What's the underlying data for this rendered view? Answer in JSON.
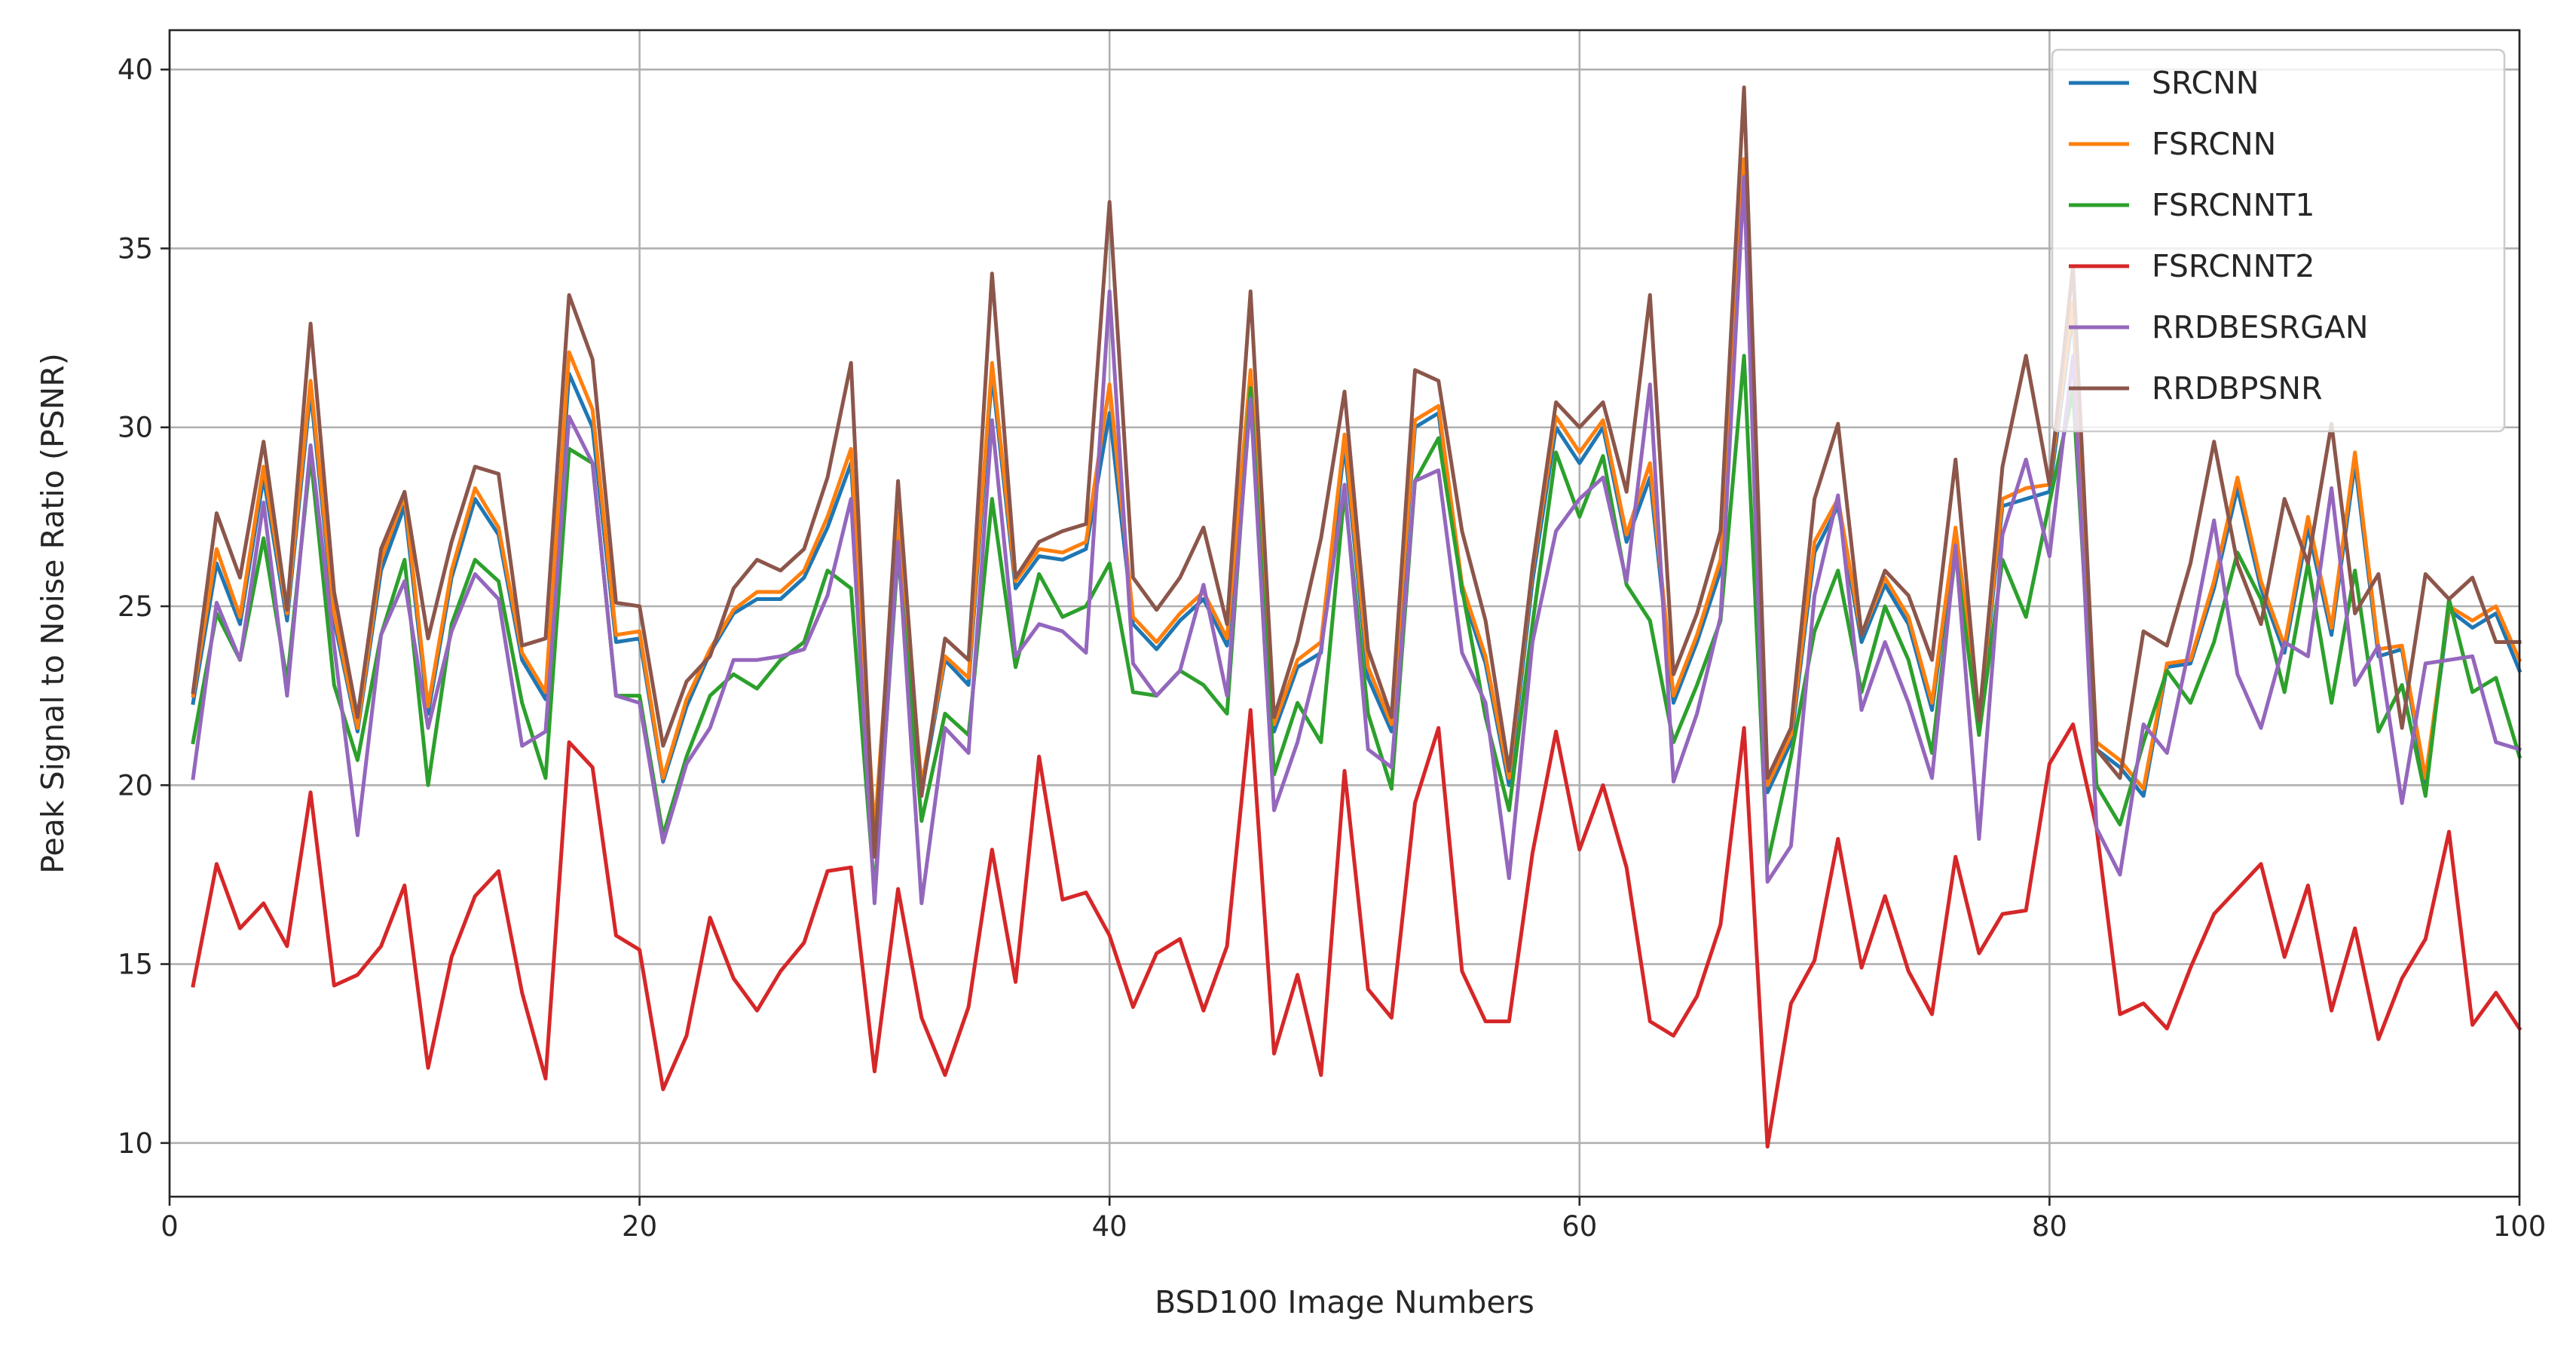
{
  "chart_data": {
    "type": "line",
    "title": "",
    "xlabel": "BSD100 Image Numbers",
    "ylabel": "Peak Signal to Noise Ratio (PSNR)",
    "xlim": [
      0,
      100
    ],
    "ylim": [
      8.5,
      41.1
    ],
    "xticks": [
      0,
      20,
      40,
      60,
      80,
      100
    ],
    "yticks": [
      10,
      15,
      20,
      25,
      30,
      35,
      40
    ],
    "grid": true,
    "legend_position": "top-right",
    "x": [
      1,
      2,
      3,
      4,
      5,
      6,
      7,
      8,
      9,
      10,
      11,
      12,
      13,
      14,
      15,
      16,
      17,
      18,
      19,
      20,
      21,
      22,
      23,
      24,
      25,
      26,
      27,
      28,
      29,
      30,
      31,
      32,
      33,
      34,
      35,
      36,
      37,
      38,
      39,
      40,
      41,
      42,
      43,
      44,
      45,
      46,
      47,
      48,
      49,
      50,
      51,
      52,
      53,
      54,
      55,
      56,
      57,
      58,
      59,
      60,
      61,
      62,
      63,
      64,
      65,
      66,
      67,
      68,
      69,
      70,
      71,
      72,
      73,
      74,
      75,
      76,
      77,
      78,
      79,
      80,
      81,
      82,
      83,
      84,
      85,
      86,
      87,
      88,
      89,
      90,
      91,
      92,
      93,
      94,
      95,
      96,
      97,
      98,
      99,
      100
    ],
    "series": [
      {
        "name": "SRCNN",
        "color": "#1f77b4",
        "values": [
          22.3,
          26.2,
          24.5,
          28.6,
          24.6,
          31.0,
          24.6,
          21.5,
          26.0,
          27.8,
          22.0,
          25.8,
          28.0,
          27.0,
          23.5,
          22.4,
          31.5,
          30.0,
          24.0,
          24.1,
          20.1,
          22.2,
          23.7,
          24.8,
          25.2,
          25.2,
          25.8,
          27.2,
          29.0,
          18.5,
          27.3,
          19.8,
          23.5,
          22.8,
          31.5,
          25.5,
          26.4,
          26.3,
          26.6,
          30.4,
          24.5,
          23.8,
          24.6,
          25.2,
          23.9,
          31.3,
          21.5,
          23.3,
          23.7,
          29.5,
          23.0,
          21.5,
          30.0,
          30.4,
          25.4,
          23.4,
          20.0,
          25.7,
          30.0,
          29.0,
          30.0,
          26.8,
          28.6,
          22.3,
          24.0,
          26.0,
          37.0,
          19.8,
          21.2,
          26.5,
          27.8,
          24.0,
          25.6,
          24.5,
          22.1,
          27.0,
          21.7,
          27.8,
          28.0,
          28.2,
          33.2,
          21.0,
          20.5,
          19.7,
          23.3,
          23.4,
          25.5,
          28.3,
          25.5,
          23.7,
          27.2,
          24.2,
          29.0,
          23.6,
          23.8,
          20.0,
          24.9,
          24.4,
          24.8,
          23.2
        ]
      },
      {
        "name": "FSRCNN",
        "color": "#ff7f0e",
        "values": [
          22.5,
          26.6,
          24.7,
          28.9,
          24.8,
          31.3,
          24.8,
          21.6,
          26.3,
          28.1,
          22.2,
          26.0,
          28.3,
          27.2,
          23.7,
          22.6,
          32.1,
          30.5,
          24.2,
          24.3,
          20.2,
          22.4,
          23.8,
          24.9,
          25.4,
          25.4,
          26.0,
          27.5,
          29.4,
          18.7,
          27.6,
          20.0,
          23.6,
          23.0,
          31.8,
          25.7,
          26.6,
          26.5,
          26.8,
          31.2,
          24.7,
          24.0,
          24.8,
          25.4,
          24.1,
          31.6,
          21.7,
          23.5,
          24.0,
          29.8,
          23.3,
          21.7,
          30.2,
          30.6,
          25.6,
          23.6,
          20.2,
          26.0,
          30.3,
          29.3,
          30.2,
          27.0,
          29.0,
          22.5,
          24.2,
          26.3,
          37.5,
          20.0,
          21.4,
          26.8,
          28.0,
          24.2,
          25.8,
          24.7,
          22.3,
          27.2,
          21.9,
          28.0,
          28.3,
          28.4,
          33.5,
          21.2,
          20.7,
          19.9,
          23.4,
          23.5,
          25.7,
          28.6,
          25.7,
          23.9,
          27.5,
          24.4,
          29.3,
          23.8,
          23.9,
          20.2,
          25.0,
          24.6,
          25.0,
          23.5
        ]
      },
      {
        "name": "FSRCNNT1",
        "color": "#2ca02c",
        "values": [
          21.2,
          24.8,
          23.5,
          26.9,
          22.9,
          29.2,
          22.8,
          20.7,
          24.2,
          26.3,
          20.0,
          24.5,
          26.3,
          25.7,
          22.3,
          20.2,
          29.4,
          29.0,
          22.5,
          22.5,
          18.6,
          20.8,
          22.5,
          23.1,
          22.7,
          23.5,
          24.0,
          26.0,
          25.5,
          17.0,
          26.5,
          19.0,
          22.0,
          21.4,
          28.0,
          23.3,
          25.9,
          24.7,
          25.0,
          26.2,
          22.6,
          22.5,
          23.2,
          22.8,
          22.0,
          31.1,
          20.3,
          22.3,
          21.2,
          28.2,
          22.0,
          19.9,
          28.5,
          29.7,
          25.5,
          21.9,
          19.3,
          24.5,
          29.3,
          27.5,
          29.2,
          25.6,
          24.6,
          21.2,
          22.8,
          24.6,
          32.0,
          17.8,
          20.8,
          24.3,
          26.0,
          22.6,
          25.0,
          23.5,
          20.9,
          26.5,
          21.4,
          26.3,
          24.7,
          27.9,
          31.0,
          20.0,
          18.9,
          21.2,
          23.2,
          22.3,
          24.0,
          26.5,
          25.2,
          22.6,
          26.2,
          22.3,
          26.0,
          21.5,
          22.8,
          19.7,
          25.2,
          22.6,
          23.0,
          20.8
        ]
      },
      {
        "name": "FSRCNNT2",
        "color": "#d62728",
        "values": [
          14.4,
          17.8,
          16.0,
          16.7,
          15.5,
          19.8,
          14.4,
          14.7,
          15.5,
          17.2,
          12.1,
          15.2,
          16.9,
          17.6,
          14.2,
          11.8,
          21.2,
          20.5,
          15.8,
          15.4,
          11.5,
          13.0,
          16.3,
          14.6,
          13.7,
          14.8,
          15.6,
          17.6,
          17.7,
          12.0,
          17.1,
          13.5,
          11.9,
          13.8,
          18.2,
          14.5,
          20.8,
          16.8,
          17.0,
          15.8,
          13.8,
          15.3,
          15.7,
          13.7,
          15.5,
          22.1,
          12.5,
          14.7,
          11.9,
          20.4,
          14.3,
          13.5,
          19.5,
          21.6,
          14.8,
          13.4,
          13.4,
          18.1,
          21.5,
          18.2,
          20.0,
          17.7,
          13.4,
          13.0,
          14.1,
          16.1,
          21.6,
          9.9,
          13.9,
          15.1,
          18.5,
          14.9,
          16.9,
          14.8,
          13.6,
          18.0,
          15.3,
          16.4,
          16.5,
          20.6,
          21.7,
          18.8,
          13.6,
          13.9,
          13.2,
          14.9,
          16.4,
          17.1,
          17.8,
          15.2,
          17.2,
          13.7,
          16.0,
          12.9,
          14.6,
          15.7,
          18.7,
          13.3,
          14.2,
          13.2
        ]
      },
      {
        "name": "RRDBESRGAN",
        "color": "#9467bd",
        "values": [
          20.2,
          25.1,
          23.5,
          27.9,
          22.5,
          29.5,
          23.9,
          18.6,
          24.2,
          25.7,
          21.6,
          24.3,
          25.9,
          25.2,
          21.1,
          21.5,
          30.3,
          29.0,
          22.5,
          22.3,
          18.4,
          20.6,
          21.6,
          23.5,
          23.5,
          23.6,
          23.8,
          25.3,
          28.0,
          16.7,
          26.8,
          16.7,
          21.6,
          20.9,
          30.2,
          23.6,
          24.5,
          24.3,
          23.7,
          33.8,
          23.4,
          22.5,
          23.2,
          25.6,
          22.5,
          30.8,
          19.3,
          21.2,
          23.8,
          28.4,
          21.0,
          20.5,
          28.5,
          28.8,
          23.7,
          22.3,
          17.4,
          24.0,
          27.1,
          28.0,
          28.6,
          25.7,
          31.2,
          20.1,
          22.0,
          24.7,
          37.0,
          17.3,
          18.3,
          25.3,
          28.1,
          22.1,
          24.0,
          22.3,
          20.2,
          26.7,
          18.5,
          27.0,
          29.1,
          26.4,
          32.0,
          18.8,
          17.5,
          21.7,
          20.9,
          24.0,
          27.4,
          23.1,
          21.6,
          24.0,
          23.6,
          28.3,
          22.8,
          23.9,
          19.5,
          23.4,
          23.5,
          23.6,
          21.2,
          21.0
        ]
      },
      {
        "name": "RRDBPSNR",
        "color": "#8c564b",
        "values": [
          22.6,
          27.6,
          25.8,
          29.6,
          24.9,
          32.9,
          25.4,
          21.9,
          26.6,
          28.2,
          24.1,
          26.8,
          28.9,
          28.7,
          23.9,
          24.1,
          33.7,
          31.9,
          25.1,
          25.0,
          21.1,
          22.9,
          23.6,
          25.5,
          26.3,
          26.0,
          26.6,
          28.6,
          31.8,
          18.0,
          28.5,
          19.7,
          24.1,
          23.5,
          34.3,
          25.8,
          26.8,
          27.1,
          27.3,
          36.3,
          25.8,
          24.9,
          25.8,
          27.2,
          24.5,
          33.8,
          21.9,
          24.0,
          26.9,
          31.0,
          23.8,
          21.9,
          31.6,
          31.3,
          27.1,
          24.6,
          20.4,
          26.1,
          30.7,
          30.0,
          30.7,
          28.2,
          33.7,
          23.1,
          24.8,
          27.1,
          39.5,
          20.2,
          21.6,
          28.0,
          30.1,
          24.2,
          26.0,
          25.3,
          23.5,
          29.1,
          21.8,
          28.9,
          32.0,
          28.4,
          34.5,
          21.0,
          20.2,
          24.3,
          23.9,
          26.2,
          29.6,
          26.2,
          24.5,
          28.0,
          26.2,
          30.1,
          24.8,
          25.9,
          21.6,
          25.9,
          25.2,
          25.8,
          24.0,
          24.0
        ]
      }
    ]
  }
}
